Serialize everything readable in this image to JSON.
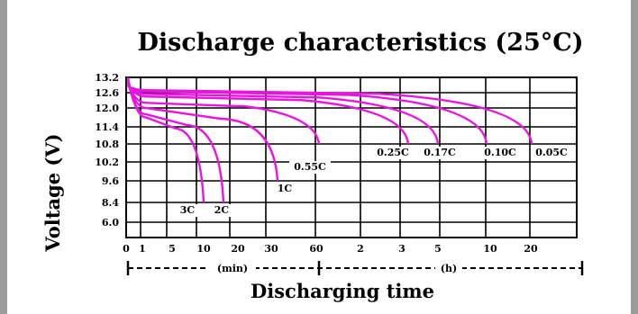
{
  "chart_data": {
    "type": "line",
    "title": "Discharge characteristics (25°C)",
    "xlabel": "Discharging time",
    "ylabel": "Voltage (V)",
    "ylim": [
      6.0,
      13.2
    ],
    "y_ticks": [
      "13.2",
      "12.6",
      "12.0",
      "11.4",
      "10.8",
      "10.2",
      "9.6",
      "8.4",
      "6.0"
    ],
    "x_ticks": [
      "0",
      "1",
      "5",
      "10",
      "20",
      "30",
      "60",
      "2",
      "3",
      "5",
      "10",
      "20"
    ],
    "x_units": [
      "(min)",
      "(h)"
    ],
    "grid": true,
    "legend": "inline-labels",
    "colors": {
      "curve": "#e815e0",
      "grid": "#000000"
    },
    "series": [
      {
        "name": "3C",
        "end_x": "10 min",
        "end_y": 8.4
      },
      {
        "name": "2C",
        "end_x": "15 min",
        "end_y": 8.4
      },
      {
        "name": "1C",
        "end_x": "30 min",
        "end_y": 9.6
      },
      {
        "name": "0.55C",
        "end_x": "60 min",
        "end_y": 10.8
      },
      {
        "name": "0.25C",
        "end_x": "3.2 h",
        "end_y": 10.8
      },
      {
        "name": "0.17C",
        "end_x": "5 h",
        "end_y": 10.8
      },
      {
        "name": "0.10C",
        "end_x": "10 h",
        "end_y": 10.8
      },
      {
        "name": "0.05C",
        "end_x": "20 h",
        "end_y": 10.8
      }
    ]
  }
}
